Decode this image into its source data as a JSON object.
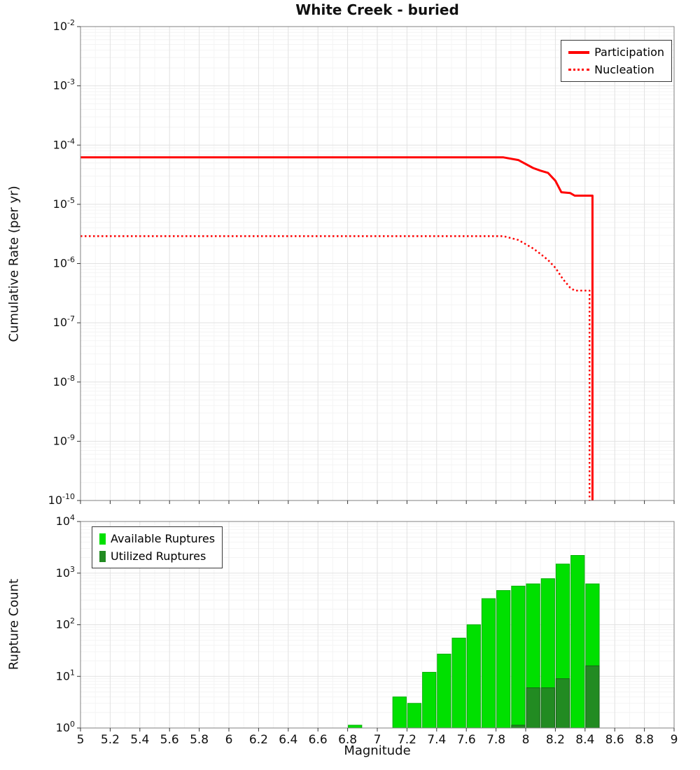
{
  "title": "White Creek - buried",
  "accent_colors": {
    "rate_lines": "#ff0000",
    "available_green": "#00e000",
    "utilized_green": "#228b22"
  },
  "chart_data": [
    {
      "type": "line",
      "title": "White Creek - buried",
      "xlabel": "",
      "ylabel": "Cumulative Rate (per yr)",
      "xlim": [
        5,
        9
      ],
      "ylim_log": [
        -10,
        -2
      ],
      "x_ticks": [
        5,
        5.2,
        5.4,
        5.6,
        5.8,
        6,
        6.2,
        6.4,
        6.6,
        6.8,
        7,
        7.2,
        7.4,
        7.6,
        7.8,
        8,
        8.2,
        8.4,
        8.6,
        8.8,
        9
      ],
      "y_tick_exponents": [
        -2,
        -3,
        -4,
        -5,
        -6,
        -7,
        -8,
        -9,
        -10
      ],
      "grid": true,
      "legend": {
        "position": "top-right",
        "entries": [
          {
            "label": "Participation",
            "style": "solid",
            "color": "#ff0000"
          },
          {
            "label": "Nucleation",
            "style": "dotted",
            "color": "#ff0000"
          }
        ]
      },
      "series": [
        {
          "name": "Participation",
          "style": "solid",
          "color": "#ff0000",
          "points": [
            [
              5,
              6.2e-05
            ],
            [
              7.85,
              6.2e-05
            ],
            [
              7.95,
              5.6e-05
            ],
            [
              8.05,
              4.1e-05
            ],
            [
              8.1,
              3.7e-05
            ],
            [
              8.15,
              3.4e-05
            ],
            [
              8.2,
              2.5e-05
            ],
            [
              8.24,
              1.6e-05
            ],
            [
              8.3,
              1.55e-05
            ],
            [
              8.33,
              1.4e-05
            ],
            [
              8.45,
              1.4e-05
            ],
            [
              8.45,
              1e-10
            ]
          ]
        },
        {
          "name": "Nucleation",
          "style": "dotted",
          "color": "#ff0000",
          "points": [
            [
              5,
              2.9e-06
            ],
            [
              7.85,
              2.9e-06
            ],
            [
              7.95,
              2.5e-06
            ],
            [
              8.05,
              1.8e-06
            ],
            [
              8.1,
              1.45e-06
            ],
            [
              8.15,
              1.15e-06
            ],
            [
              8.2,
              8.5e-07
            ],
            [
              8.25,
              5.5e-07
            ],
            [
              8.3,
              3.9e-07
            ],
            [
              8.33,
              3.5e-07
            ],
            [
              8.43,
              3.5e-07
            ],
            [
              8.43,
              1e-10
            ]
          ]
        }
      ]
    },
    {
      "type": "bar",
      "title": "",
      "xlabel": "Magnitude",
      "ylabel": "Rupture Count",
      "xlim": [
        5,
        9
      ],
      "ylim_log": [
        0,
        4
      ],
      "bin_width": 0.1,
      "x_ticks": [
        5,
        5.2,
        5.4,
        5.6,
        5.8,
        6,
        6.2,
        6.4,
        6.6,
        6.8,
        7,
        7.2,
        7.4,
        7.6,
        7.8,
        8,
        8.2,
        8.4,
        8.6,
        8.8,
        9
      ],
      "y_tick_exponents": [
        4,
        3,
        2,
        1,
        0
      ],
      "grid": true,
      "legend": {
        "position": "top-left",
        "entries": [
          {
            "label": "Available Ruptures",
            "color": "#00e000"
          },
          {
            "label": "Utilized Ruptures",
            "color": "#228b22"
          }
        ]
      },
      "series": [
        {
          "name": "Available Ruptures",
          "color": "#00e000",
          "edge_color": "#00b000",
          "bins": [
            [
              6.8,
              1
            ],
            [
              7.1,
              4
            ],
            [
              7.2,
              3
            ],
            [
              7.3,
              12
            ],
            [
              7.4,
              27
            ],
            [
              7.5,
              55
            ],
            [
              7.6,
              100
            ],
            [
              7.7,
              320
            ],
            [
              7.8,
              460
            ],
            [
              7.9,
              560
            ],
            [
              8.0,
              620
            ],
            [
              8.1,
              780
            ],
            [
              8.2,
              1500
            ],
            [
              8.3,
              2200
            ],
            [
              8.4,
              620
            ]
          ]
        },
        {
          "name": "Utilized Ruptures",
          "color": "#228b22",
          "edge_color": "#176117",
          "bins": [
            [
              7.9,
              1
            ],
            [
              8.0,
              6
            ],
            [
              8.1,
              6
            ],
            [
              8.2,
              9
            ],
            [
              8.4,
              16
            ]
          ]
        }
      ]
    }
  ]
}
